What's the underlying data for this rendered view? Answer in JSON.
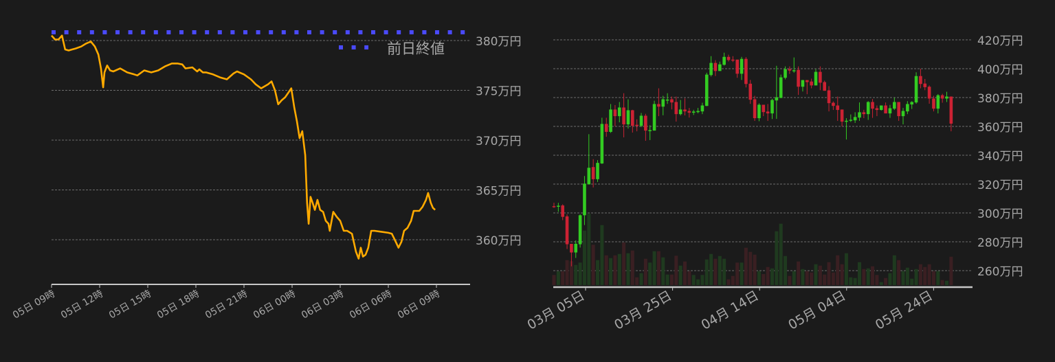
{
  "chart_data": [
    {
      "type": "line",
      "y_unit_suffix": "万円",
      "yticks": [
        360,
        365,
        370,
        375,
        380
      ],
      "ylim": [
        355.5,
        381
      ],
      "xticks": [
        "05日 09時",
        "05日 12時",
        "05日 15時",
        "05日 18時",
        "05日 21時",
        "06日 00時",
        "06日 03時",
        "06日 06時",
        "06日 09時"
      ],
      "grid": true,
      "color": "#ffaa00",
      "reference_line": {
        "name": "前日終値",
        "value": 380.8,
        "color": "#4a4aff",
        "legend": "top-right"
      },
      "points": [
        [
          "05 09:00",
          380.5
        ],
        [
          "05 09:13",
          380.1
        ],
        [
          "05 09:26",
          380.1
        ],
        [
          "05 09:39",
          380.5
        ],
        [
          "05 09:51",
          379.1
        ],
        [
          "05 10:04",
          379.0
        ],
        [
          "05 10:17",
          379.1
        ],
        [
          "05 10:30",
          379.2
        ],
        [
          "05 10:51",
          379.4
        ],
        [
          "05 11:09",
          379.7
        ],
        [
          "05 11:27",
          379.9
        ],
        [
          "05 11:42",
          379.4
        ],
        [
          "05 11:55",
          378.6
        ],
        [
          "05 12:05",
          377.2
        ],
        [
          "05 12:13",
          375.3
        ],
        [
          "05 12:18",
          376.8
        ],
        [
          "05 12:28",
          377.5
        ],
        [
          "05 12:39",
          377.0
        ],
        [
          "05 12:51",
          376.9
        ],
        [
          "05 13:17",
          377.2
        ],
        [
          "05 13:43",
          376.8
        ],
        [
          "05 14:09",
          376.6
        ],
        [
          "05 14:21",
          376.5
        ],
        [
          "05 14:47",
          377.0
        ],
        [
          "05 15:13",
          376.8
        ],
        [
          "05 15:39",
          377.0
        ],
        [
          "05 16:04",
          377.4
        ],
        [
          "05 16:30",
          377.7
        ],
        [
          "05 16:51",
          377.7
        ],
        [
          "05 17:09",
          377.6
        ],
        [
          "05 17:21",
          377.2
        ],
        [
          "05 17:47",
          377.3
        ],
        [
          "05 18:05",
          376.9
        ],
        [
          "05 18:13",
          377.1
        ],
        [
          "05 18:26",
          376.8
        ],
        [
          "05 18:38",
          376.8
        ],
        [
          "05 19:04",
          376.6
        ],
        [
          "05 19:30",
          376.3
        ],
        [
          "05 19:56",
          376.1
        ],
        [
          "05 20:21",
          376.7
        ],
        [
          "05 20:34",
          376.9
        ],
        [
          "05 21:00",
          376.6
        ],
        [
          "05 21:26",
          376.1
        ],
        [
          "05 21:44",
          375.6
        ],
        [
          "05 22:04",
          375.2
        ],
        [
          "05 22:30",
          375.6
        ],
        [
          "05 22:43",
          375.9
        ],
        [
          "05 22:56",
          375.0
        ],
        [
          "05 23:08",
          373.6
        ],
        [
          "05 23:21",
          374.0
        ],
        [
          "05 23:34",
          374.3
        ],
        [
          "05 23:47",
          374.8
        ],
        [
          "05 23:57",
          375.2
        ],
        [
          "06 00:08",
          373.3
        ],
        [
          "06 00:18",
          371.9
        ],
        [
          "06 00:28",
          370.2
        ],
        [
          "06 00:38",
          370.9
        ],
        [
          "06 00:49",
          368.5
        ],
        [
          "06 00:56",
          363.7
        ],
        [
          "06 01:02",
          361.6
        ],
        [
          "06 01:09",
          364.3
        ],
        [
          "06 01:17",
          363.7
        ],
        [
          "06 01:25",
          363.0
        ],
        [
          "06 01:35",
          364.0
        ],
        [
          "06 01:45",
          363.0
        ],
        [
          "06 01:56",
          362.8
        ],
        [
          "06 02:06",
          361.9
        ],
        [
          "06 02:16",
          361.6
        ],
        [
          "06 02:21",
          360.9
        ],
        [
          "06 02:34",
          362.8
        ],
        [
          "06 02:47",
          362.3
        ],
        [
          "06 03:00",
          361.9
        ],
        [
          "06 03:13",
          360.9
        ],
        [
          "06 03:26",
          360.9
        ],
        [
          "06 03:44",
          360.6
        ],
        [
          "06 03:59",
          358.8
        ],
        [
          "06 04:09",
          358.1
        ],
        [
          "06 04:17",
          359.2
        ],
        [
          "06 04:25",
          358.3
        ],
        [
          "06 04:35",
          358.5
        ],
        [
          "06 04:45",
          359.2
        ],
        [
          "06 04:56",
          360.9
        ],
        [
          "06 05:08",
          360.9
        ],
        [
          "06 05:34",
          360.8
        ],
        [
          "06 06:00",
          360.7
        ],
        [
          "06 06:13",
          360.6
        ],
        [
          "06 06:26",
          359.9
        ],
        [
          "06 06:38",
          359.2
        ],
        [
          "06 06:49",
          359.8
        ],
        [
          "06 06:59",
          360.9
        ],
        [
          "06 07:12",
          361.2
        ],
        [
          "06 07:25",
          361.9
        ],
        [
          "06 07:35",
          362.9
        ],
        [
          "06 07:56",
          362.9
        ],
        [
          "06 08:08",
          363.3
        ],
        [
          "06 08:21",
          364.0
        ],
        [
          "06 08:29",
          364.7
        ],
        [
          "06 08:39",
          363.7
        ],
        [
          "06 08:47",
          363.2
        ],
        [
          "06 08:55",
          363.0
        ]
      ]
    },
    {
      "type": "candlestick",
      "y_unit_suffix": "万円",
      "yticks": [
        260,
        280,
        300,
        320,
        340,
        360,
        380,
        400,
        420
      ],
      "ylim": [
        250,
        425
      ],
      "xticks": [
        {
          "label": "03月 05日",
          "index": 20
        },
        {
          "label": "03月 25日",
          "index": 40
        },
        {
          "label": "04月 14日",
          "index": 60
        },
        {
          "label": "05月 04日",
          "index": 80
        },
        {
          "label": "05月 24日",
          "index": 100
        }
      ],
      "grid": true,
      "up_color": "#33cc22",
      "down_color": "#cc2233",
      "ohlc": [
        [
          304.7,
          307.1,
          303.5,
          304.0
        ],
        [
          304.5,
          307,
          300.8,
          305.0
        ],
        [
          305.2,
          306,
          295,
          297.3
        ],
        [
          297.6,
          299,
          275,
          278.3
        ],
        [
          278.6,
          278.6,
          263,
          272.6
        ],
        [
          272.6,
          281,
          268.8,
          278.6
        ],
        [
          278.3,
          299,
          276,
          298.4
        ],
        [
          298.4,
          325.6,
          291.6,
          320.3
        ],
        [
          319.8,
          354.6,
          319.8,
          331.3
        ],
        [
          331.8,
          337.3,
          317.7,
          323.4
        ],
        [
          323.4,
          336.6,
          321.5,
          334.7
        ],
        [
          334.3,
          366,
          334,
          361.7
        ],
        [
          361.7,
          366,
          352.8,
          356.2
        ],
        [
          356.2,
          375.5,
          355.5,
          371.7
        ],
        [
          371.7,
          374.8,
          360.1,
          367.1
        ],
        [
          367.1,
          376.9,
          362.8,
          373.1
        ],
        [
          373.1,
          383,
          352.4,
          361.4
        ],
        [
          361.4,
          378.8,
          358.5,
          371.2
        ],
        [
          371.2,
          371.5,
          355.7,
          360.4
        ],
        [
          361.1,
          364.9,
          356.6,
          360.3
        ],
        [
          360.4,
          369.3,
          359.5,
          367.4
        ],
        [
          367.4,
          368.7,
          350,
          357.1
        ],
        [
          357.2,
          360.8,
          350.5,
          357.4
        ],
        [
          357.1,
          377.8,
          357.1,
          375.5
        ],
        [
          375.5,
          386.4,
          367.1,
          373.7
        ],
        [
          373.7,
          381.2,
          367.7,
          378.8
        ],
        [
          378.4,
          383,
          375.6,
          378.6
        ],
        [
          378.8,
          380.7,
          371.8,
          376.6
        ],
        [
          376.9,
          380.7,
          363.3,
          368.5
        ],
        [
          368.5,
          378.3,
          367.6,
          371.7
        ],
        [
          371.7,
          379.4,
          367.6,
          370.4
        ],
        [
          370.7,
          372.8,
          366.1,
          369.5
        ],
        [
          369.5,
          371.5,
          367.9,
          370.3
        ],
        [
          369.9,
          372.8,
          369.1,
          370.7
        ],
        [
          370.4,
          376.4,
          368.5,
          374.5
        ],
        [
          374.2,
          397.2,
          374,
          395.9
        ],
        [
          395.6,
          408.7,
          394.6,
          404.0
        ],
        [
          404.0,
          405.9,
          394.9,
          398.4
        ],
        [
          398.4,
          404.9,
          398.4,
          403.0
        ],
        [
          402.7,
          411.1,
          402.2,
          408.2
        ],
        [
          408.2,
          409.7,
          405.0,
          406.0
        ],
        [
          406.3,
          408.7,
          404.6,
          406.1
        ],
        [
          406.3,
          406.3,
          393.7,
          396.5
        ],
        [
          396.5,
          408.2,
          392.2,
          406.8
        ],
        [
          406.8,
          408.0,
          387.0,
          389.4
        ],
        [
          389.6,
          392.2,
          375.6,
          378.5
        ],
        [
          378.8,
          381.2,
          363.8,
          365.7
        ],
        [
          365.7,
          376.0,
          363.6,
          375.0
        ],
        [
          375.0,
          375.0,
          367.1,
          369.9
        ],
        [
          370.3,
          375.5,
          363.8,
          369.0
        ],
        [
          369.0,
          379.1,
          365.1,
          378.3
        ],
        [
          378.0,
          402.0,
          365.2,
          380.2
        ],
        [
          379.7,
          395.9,
          379.7,
          394.0
        ],
        [
          393.7,
          401.6,
          392.6,
          399.7
        ],
        [
          399.7,
          401.6,
          396.4,
          398.7
        ],
        [
          398.7,
          407.8,
          397.2,
          398.9
        ],
        [
          399.2,
          401.6,
          381.8,
          387.5
        ],
        [
          387.5,
          392.2,
          384.2,
          392.1
        ],
        [
          392.1,
          391.7,
          382.3,
          390.7
        ],
        [
          391.1,
          393.1,
          386.4,
          388.4
        ],
        [
          388.4,
          399.7,
          388.4,
          397.8
        ],
        [
          397.8,
          401.6,
          385.1,
          390.3
        ],
        [
          390.7,
          391.7,
          384.7,
          384.7
        ],
        [
          385.0,
          387.9,
          370.4,
          376.1
        ],
        [
          376.4,
          377.3,
          371.4,
          374.2
        ],
        [
          374.5,
          380.7,
          363.8,
          371.4
        ],
        [
          371.7,
          371.7,
          360.0,
          363.3
        ],
        [
          363.3,
          365.7,
          350.9,
          363.9
        ],
        [
          364.2,
          368.3,
          363.1,
          364.6
        ],
        [
          364.2,
          369.8,
          362.4,
          366.5
        ],
        [
          366.1,
          376.6,
          363.8,
          369.8
        ],
        [
          369.8,
          371.5,
          365.7,
          368.5
        ],
        [
          368.5,
          377.5,
          364.5,
          376.9
        ],
        [
          376.9,
          379.0,
          365.9,
          372.3
        ],
        [
          372.6,
          374.5,
          367.1,
          371.4
        ],
        [
          371.4,
          374.5,
          371.0,
          374.5
        ],
        [
          374.5,
          376.6,
          369.0,
          369.0
        ],
        [
          369.0,
          374.9,
          365.9,
          372.6
        ],
        [
          372.3,
          380.0,
          371.4,
          376.9
        ],
        [
          376.9,
          376.9,
          363.8,
          367.1
        ],
        [
          367.1,
          372.8,
          361.4,
          370.7
        ],
        [
          370.4,
          377.5,
          368.5,
          375.5
        ],
        [
          375.2,
          377.5,
          372.1,
          376.9
        ],
        [
          376.6,
          397.5,
          375.7,
          394.9
        ],
        [
          394.9,
          400.0,
          386.4,
          389.4
        ],
        [
          389.7,
          392.9,
          385.1,
          387.2
        ],
        [
          387.5,
          388.4,
          375.7,
          379.3
        ],
        [
          379.3,
          381.2,
          370.4,
          372.3
        ],
        [
          372.3,
          382.4,
          369.0,
          381.6
        ],
        [
          381.6,
          382.6,
          376.4,
          379.3
        ],
        [
          379.3,
          384.0,
          376.9,
          380.7
        ],
        [
          380.7,
          380.7,
          356.6,
          361.9
        ]
      ],
      "volume": [
        44,
        60,
        60,
        109,
        104,
        88,
        98,
        238,
        311,
        176,
        109,
        262,
        130,
        118,
        130,
        136,
        186,
        139,
        151,
        34,
        52,
        115,
        98,
        148,
        148,
        121,
        46,
        46,
        128,
        85,
        103,
        61,
        44,
        25,
        44,
        112,
        136,
        115,
        127,
        115,
        25,
        40,
        98,
        98,
        163,
        145,
        133,
        61,
        48,
        79,
        73,
        235,
        268,
        127,
        40,
        61,
        103,
        70,
        61,
        55,
        91,
        85,
        46,
        100,
        55,
        130,
        91,
        139,
        34,
        31,
        100,
        70,
        73,
        82,
        44,
        13,
        31,
        52,
        130,
        109,
        61,
        76,
        28,
        70,
        91,
        79,
        91,
        61,
        61,
        22,
        19,
        124
      ]
    }
  ]
}
